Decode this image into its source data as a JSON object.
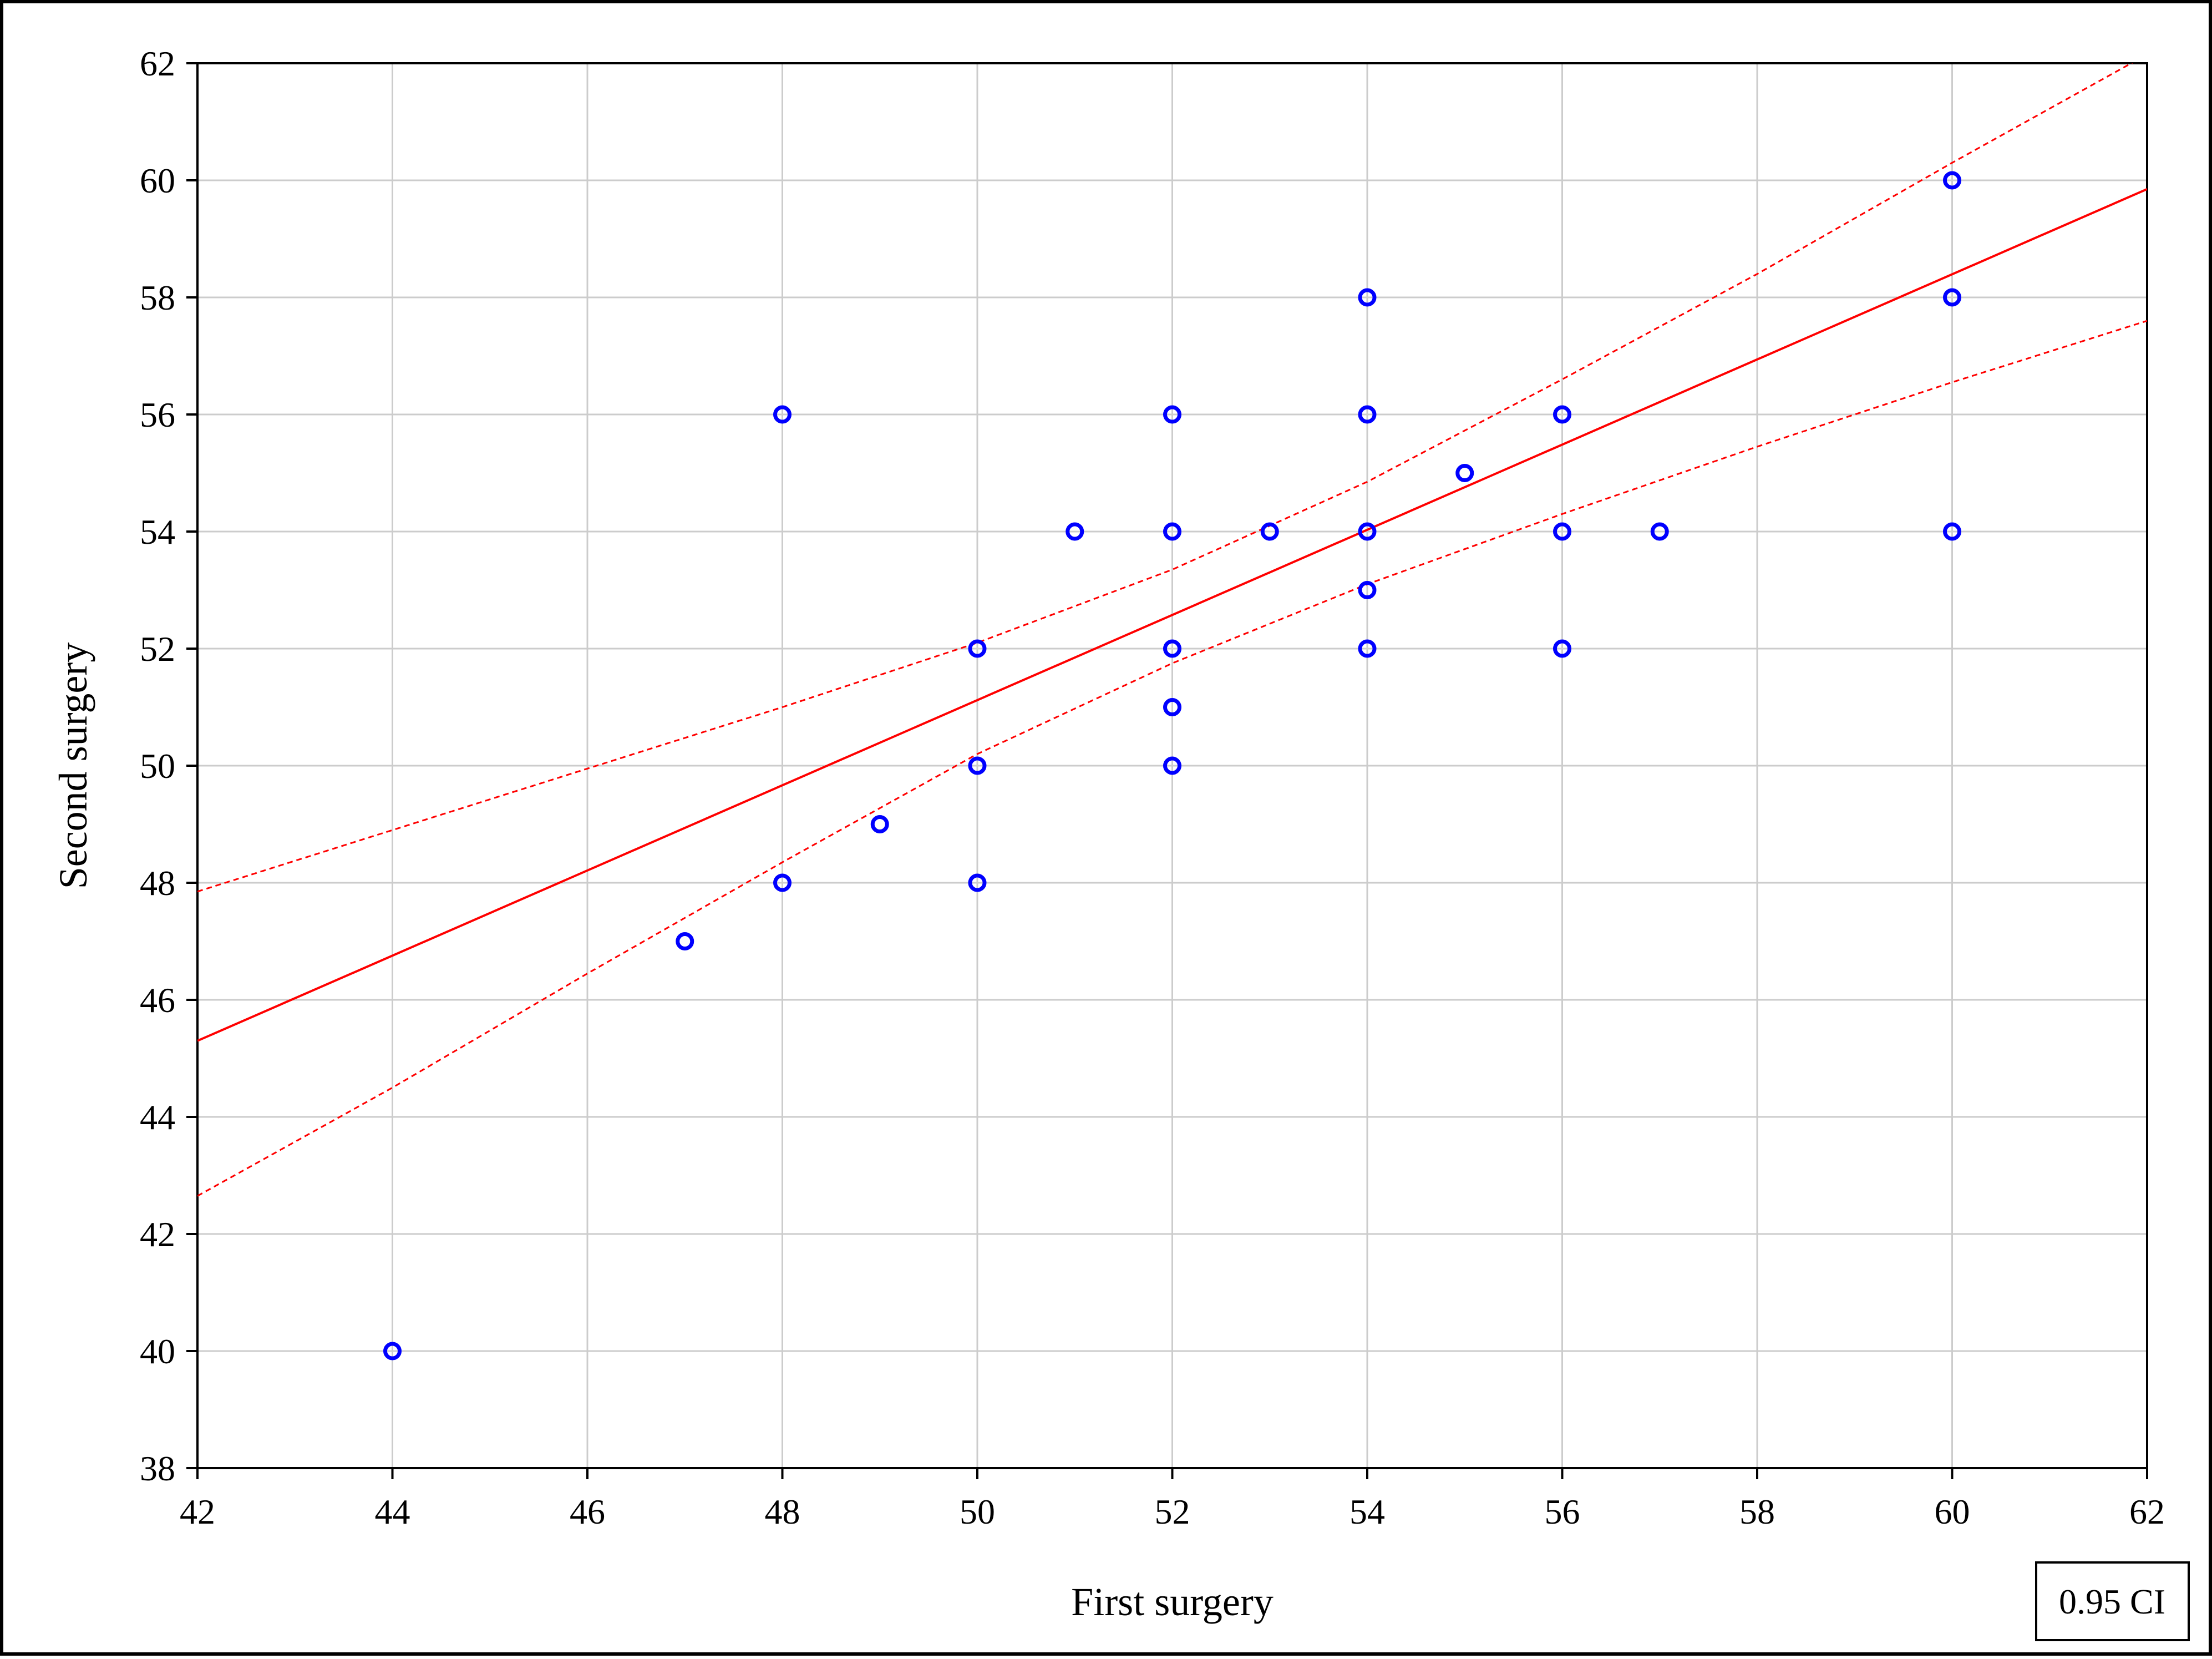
{
  "chart_data": {
    "type": "scatter",
    "xlabel": "First surgery",
    "ylabel": "Second surgery",
    "xlim": [
      42,
      62
    ],
    "ylim": [
      38,
      62
    ],
    "xticks": [
      42,
      44,
      46,
      48,
      50,
      52,
      54,
      56,
      58,
      60,
      62
    ],
    "yticks": [
      38,
      40,
      42,
      44,
      46,
      48,
      50,
      52,
      54,
      56,
      58,
      60,
      62
    ],
    "grid": true,
    "points": [
      {
        "x": 44,
        "y": 40
      },
      {
        "x": 47,
        "y": 47
      },
      {
        "x": 48,
        "y": 48
      },
      {
        "x": 48,
        "y": 56
      },
      {
        "x": 49,
        "y": 49
      },
      {
        "x": 50,
        "y": 48
      },
      {
        "x": 50,
        "y": 50
      },
      {
        "x": 50,
        "y": 52
      },
      {
        "x": 51,
        "y": 54
      },
      {
        "x": 52,
        "y": 50
      },
      {
        "x": 52,
        "y": 51
      },
      {
        "x": 52,
        "y": 52
      },
      {
        "x": 52,
        "y": 54
      },
      {
        "x": 52,
        "y": 56
      },
      {
        "x": 53,
        "y": 54
      },
      {
        "x": 54,
        "y": 52
      },
      {
        "x": 54,
        "y": 53
      },
      {
        "x": 54,
        "y": 54
      },
      {
        "x": 54,
        "y": 56
      },
      {
        "x": 54,
        "y": 58
      },
      {
        "x": 55,
        "y": 55
      },
      {
        "x": 56,
        "y": 52
      },
      {
        "x": 56,
        "y": 54
      },
      {
        "x": 56,
        "y": 56
      },
      {
        "x": 57,
        "y": 54
      },
      {
        "x": 60,
        "y": 54
      },
      {
        "x": 60,
        "y": 58
      },
      {
        "x": 60,
        "y": 60
      }
    ],
    "regression_line": {
      "x": [
        42,
        62
      ],
      "y": [
        45.3,
        59.85
      ]
    },
    "ci_upper": {
      "x": [
        42,
        44,
        46,
        48,
        50,
        52,
        54,
        56,
        58,
        60,
        62
      ],
      "y": [
        47.85,
        48.9,
        49.95,
        51.0,
        52.1,
        53.35,
        54.85,
        56.6,
        58.4,
        60.3,
        62.15
      ]
    },
    "ci_lower": {
      "x": [
        42,
        44,
        46,
        48,
        50,
        52,
        54,
        56,
        58,
        60,
        62
      ],
      "y": [
        42.65,
        44.5,
        46.45,
        48.35,
        50.2,
        51.75,
        53.1,
        54.3,
        55.45,
        56.55,
        57.6
      ]
    },
    "annotation": "0.95 CI",
    "colors": {
      "points": "#0000ff",
      "line": "#ff0000",
      "grid": "#cccccc",
      "axis": "#000000"
    }
  }
}
